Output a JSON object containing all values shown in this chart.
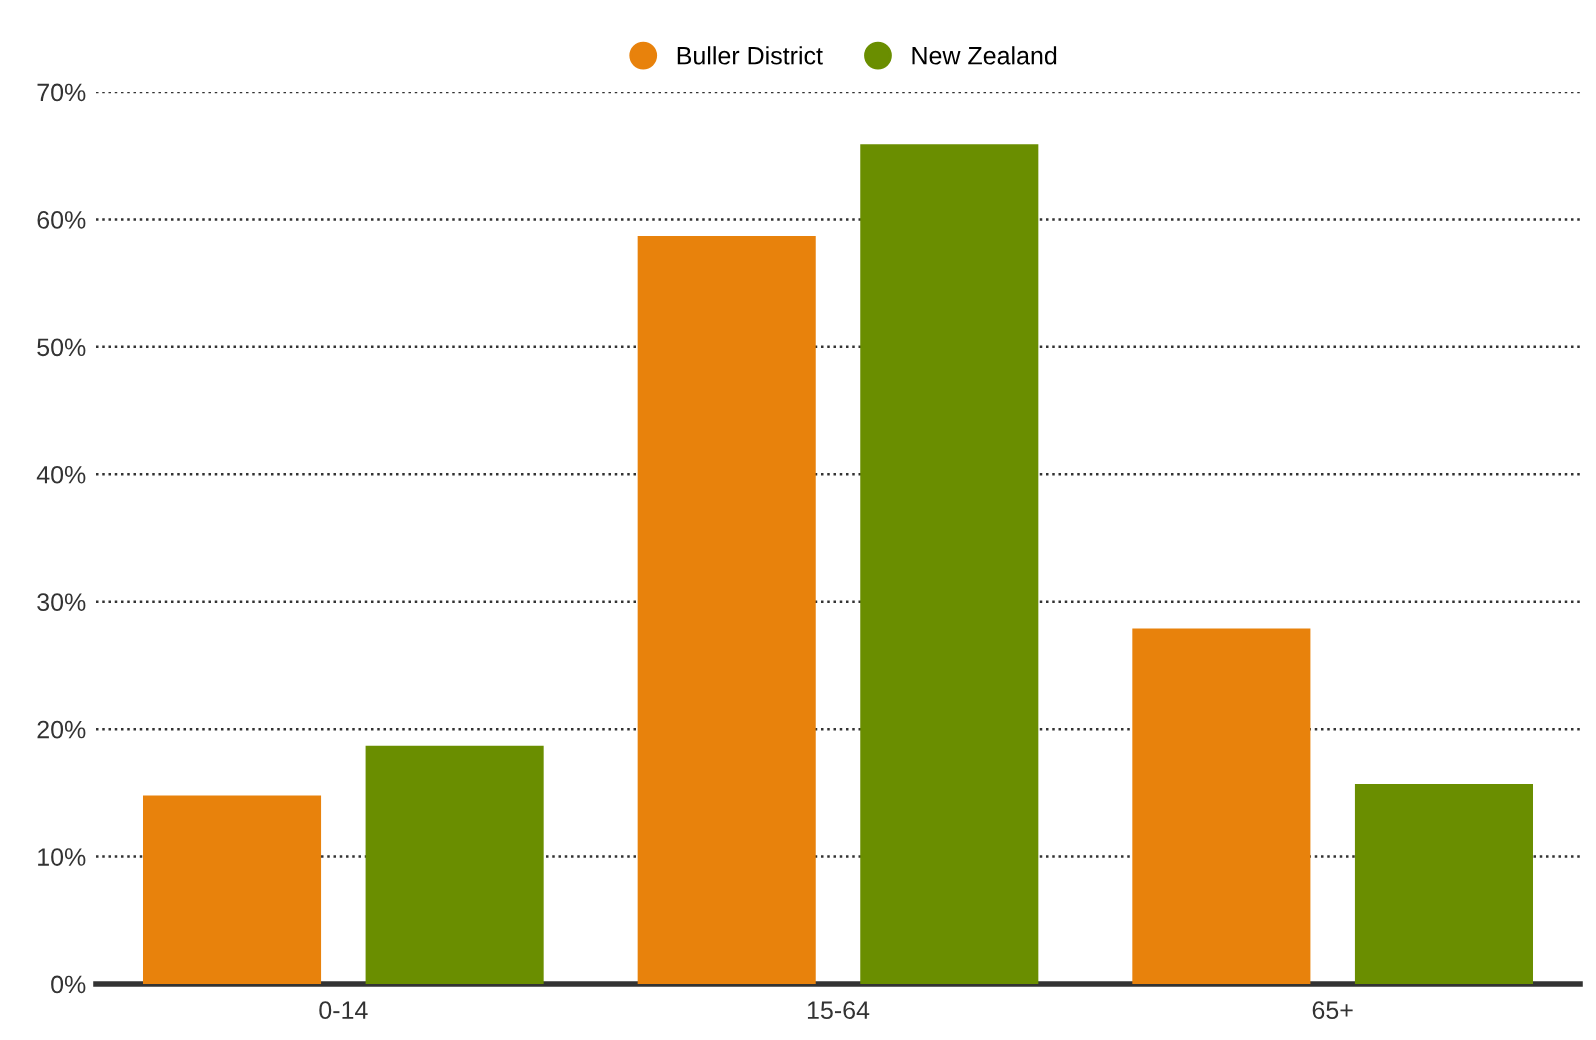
{
  "chart_data": {
    "type": "bar",
    "categories": [
      "0-14",
      "15-64",
      "65+"
    ],
    "series": [
      {
        "name": "Buller District",
        "color": "#e8820c",
        "values": [
          14.8,
          58.7,
          27.9
        ]
      },
      {
        "name": "New Zealand",
        "color": "#6a8e00",
        "values": [
          18.7,
          65.9,
          15.7
        ]
      }
    ],
    "ylim": [
      0,
      70
    ],
    "yticks": [
      {
        "value": 0,
        "label": "0%"
      },
      {
        "value": 10,
        "label": "10%"
      },
      {
        "value": 20,
        "label": "20%"
      },
      {
        "value": 30,
        "label": "30%"
      },
      {
        "value": 40,
        "label": "40%"
      },
      {
        "value": 50,
        "label": "50%"
      },
      {
        "value": 60,
        "label": "60%"
      },
      {
        "value": 70,
        "label": "70%"
      }
    ],
    "grid": "y",
    "legend": "top"
  }
}
